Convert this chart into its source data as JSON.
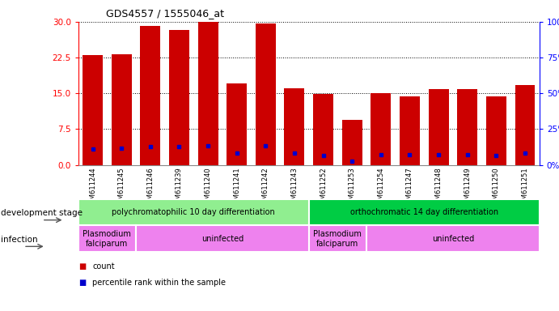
{
  "title": "GDS4557 / 1555046_at",
  "samples": [
    "GSM611244",
    "GSM611245",
    "GSM611246",
    "GSM611239",
    "GSM611240",
    "GSM611241",
    "GSM611242",
    "GSM611243",
    "GSM611252",
    "GSM611253",
    "GSM611254",
    "GSM611247",
    "GSM611248",
    "GSM611249",
    "GSM611250",
    "GSM611251"
  ],
  "counts": [
    23.0,
    23.2,
    29.2,
    28.3,
    30.0,
    17.0,
    29.7,
    16.0,
    14.8,
    9.5,
    15.1,
    14.4,
    15.8,
    15.8,
    14.3,
    16.8
  ],
  "percentiles": [
    11.0,
    11.5,
    13.0,
    12.7,
    13.5,
    8.0,
    13.2,
    8.0,
    6.8,
    2.3,
    7.0,
    7.0,
    7.2,
    7.0,
    6.5,
    8.0
  ],
  "ylim_left": [
    0,
    30
  ],
  "ylim_right": [
    0,
    100
  ],
  "yticks_left": [
    0,
    7.5,
    15,
    22.5,
    30
  ],
  "yticks_right": [
    0,
    25,
    50,
    75,
    100
  ],
  "bar_color": "#cc0000",
  "dot_color": "#0000cc",
  "background_color": "#ffffff",
  "plot_bg_color": "#ffffff",
  "dev_stage_groups": [
    {
      "label": "polychromatophilic 10 day differentiation",
      "start": 0,
      "end": 7,
      "color": "#90ee90"
    },
    {
      "label": "orthochromatic 14 day differentiation",
      "start": 8,
      "end": 15,
      "color": "#00cc44"
    }
  ],
  "infection_groups": [
    {
      "label": "Plasmodium\nfalciparum",
      "start": 0,
      "end": 1,
      "color": "#ee82ee"
    },
    {
      "label": "uninfected",
      "start": 2,
      "end": 7,
      "color": "#ee82ee"
    },
    {
      "label": "Plasmodium\nfalciparum",
      "start": 8,
      "end": 9,
      "color": "#ee82ee"
    },
    {
      "label": "uninfected",
      "start": 10,
      "end": 15,
      "color": "#ee82ee"
    }
  ],
  "legend_count_color": "#cc0000",
  "legend_dot_color": "#0000cc"
}
